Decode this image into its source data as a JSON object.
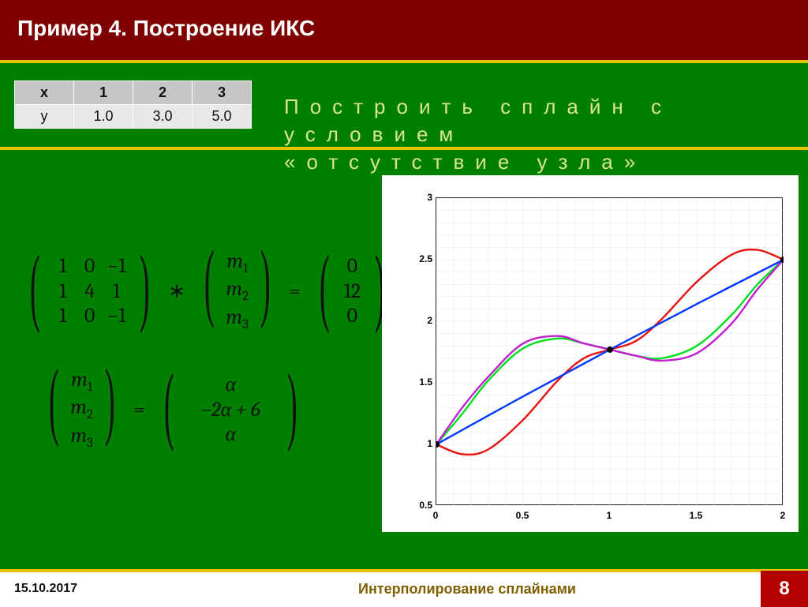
{
  "title": "Пример 4. Построение ИКС",
  "instruction_line1": "Построить сплайн с",
  "instruction_line2": "условием",
  "instruction_line3": "«отсутствие узла»",
  "table": {
    "head": [
      "x",
      "1",
      "2",
      "3"
    ],
    "row": [
      "y",
      "1.0",
      "3.0",
      "5.0"
    ]
  },
  "eq1": {
    "A": [
      [
        "1",
        "0",
        "−1"
      ],
      [
        "1",
        "4",
        "1"
      ],
      [
        "1",
        "0",
        "−1"
      ]
    ],
    "m": [
      "m₁",
      "m₂",
      "m₃"
    ],
    "b": [
      "0",
      "12",
      "0"
    ]
  },
  "eq2": {
    "m": [
      "m₁",
      "m₂",
      "m₃"
    ],
    "r": [
      "α",
      "−2α + 6",
      "α"
    ]
  },
  "chart": {
    "xlim": [
      0,
      2
    ],
    "ylim": [
      0.5,
      3
    ],
    "xticks": [
      0,
      0.5,
      1,
      1.5,
      2
    ],
    "yticks": [
      0.5,
      1,
      1.5,
      2,
      2.5,
      3
    ],
    "bg": "#ffffff",
    "grid_color": "#e6e6e6",
    "border_color": "#222222",
    "label_fontsize": 12,
    "label_fontweight": "bold",
    "line_width": 2.4,
    "marker_radius": 4,
    "marker_fill": "#000000",
    "colors": {
      "blue": "#0038ff",
      "red": "#e81010",
      "green": "#00e020",
      "purple": "#c020d0"
    },
    "points": [
      [
        0,
        1.0
      ],
      [
        1,
        1.77
      ],
      [
        2,
        2.5
      ]
    ],
    "series": {
      "blue": [
        [
          0,
          1.0
        ],
        [
          0.5,
          1.39
        ],
        [
          1,
          1.77
        ],
        [
          1.5,
          2.14
        ],
        [
          2,
          2.5
        ]
      ],
      "red": [
        [
          0,
          1.0
        ],
        [
          0.15,
          0.92
        ],
        [
          0.3,
          0.96
        ],
        [
          0.5,
          1.2
        ],
        [
          0.7,
          1.52
        ],
        [
          0.85,
          1.7
        ],
        [
          1,
          1.77
        ],
        [
          1.15,
          1.84
        ],
        [
          1.3,
          2.02
        ],
        [
          1.5,
          2.32
        ],
        [
          1.7,
          2.54
        ],
        [
          1.85,
          2.58
        ],
        [
          2,
          2.5
        ]
      ],
      "green": [
        [
          0,
          1.0
        ],
        [
          0.15,
          1.25
        ],
        [
          0.3,
          1.52
        ],
        [
          0.5,
          1.78
        ],
        [
          0.7,
          1.86
        ],
        [
          0.85,
          1.82
        ],
        [
          1,
          1.77
        ],
        [
          1.15,
          1.72
        ],
        [
          1.3,
          1.7
        ],
        [
          1.5,
          1.8
        ],
        [
          1.7,
          2.05
        ],
        [
          1.85,
          2.3
        ],
        [
          2,
          2.5
        ]
      ],
      "purple": [
        [
          0,
          1.0
        ],
        [
          0.15,
          1.3
        ],
        [
          0.3,
          1.55
        ],
        [
          0.5,
          1.82
        ],
        [
          0.7,
          1.88
        ],
        [
          0.85,
          1.82
        ],
        [
          1,
          1.77
        ],
        [
          1.15,
          1.72
        ],
        [
          1.3,
          1.68
        ],
        [
          1.5,
          1.74
        ],
        [
          1.7,
          1.98
        ],
        [
          1.85,
          2.26
        ],
        [
          2,
          2.5
        ]
      ]
    }
  },
  "footer": {
    "date": "15.10.2017",
    "title": "Интерполирование сплайнами",
    "page": "8"
  }
}
